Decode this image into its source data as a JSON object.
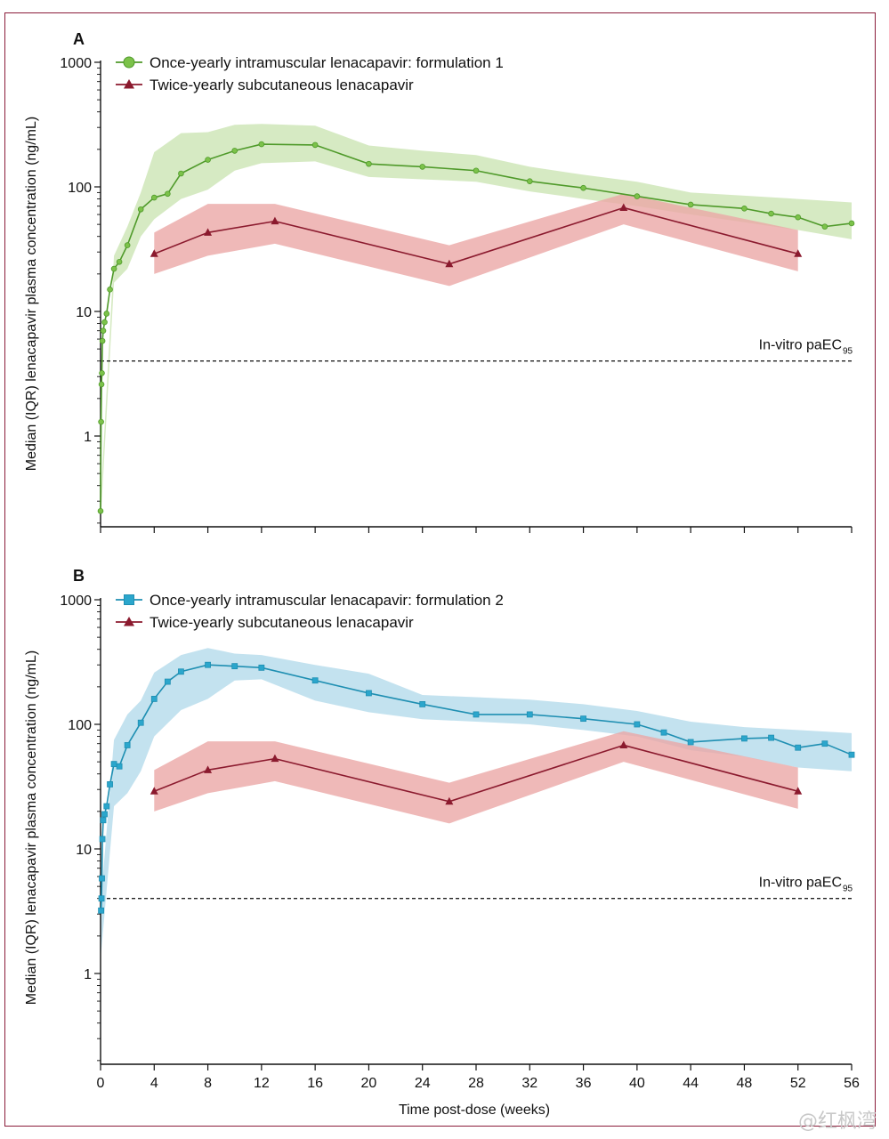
{
  "watermark": "@红枫湾",
  "chart_data": [
    {
      "panel": "A",
      "type": "line",
      "y_scale": "log",
      "ylabel": "Median (IQR) lenacapavir plasma concentration (ng/mL)",
      "ylim": [
        0.2,
        1000
      ],
      "yticks": [
        1,
        10,
        100,
        1000
      ],
      "ytick_labels": [
        "1",
        "10",
        "100",
        "1000"
      ],
      "xlim": [
        0,
        56
      ],
      "xticks": [
        0,
        4,
        8,
        12,
        16,
        20,
        24,
        28,
        32,
        36,
        40,
        44,
        48,
        52,
        56
      ],
      "legend_position": "top-left",
      "reference_line": {
        "y": 4,
        "label_main": "In-vitro paEC",
        "label_sub": "95"
      },
      "series": [
        {
          "name": "Once-yearly intramuscular lenacapavir: formulation 1",
          "color": "#4f9a2a",
          "band_color": "#cfe6b8",
          "marker": "circle",
          "points": [
            [
              0,
              0.25
            ],
            [
              0.04,
              1.3
            ],
            [
              0.07,
              2.6
            ],
            [
              0.1,
              3.2
            ],
            [
              0.14,
              5.8
            ],
            [
              0.2,
              7.0
            ],
            [
              0.3,
              8.2
            ],
            [
              0.45,
              9.6
            ],
            [
              0.7,
              15
            ],
            [
              1.0,
              22
            ],
            [
              1.4,
              25
            ],
            [
              2,
              34
            ],
            [
              3,
              66
            ],
            [
              4,
              82
            ],
            [
              5,
              88
            ],
            [
              6,
              128
            ],
            [
              8,
              165
            ],
            [
              10,
              195
            ],
            [
              12,
              220
            ],
            [
              16,
              217
            ],
            [
              20,
              153
            ],
            [
              24,
              145
            ],
            [
              28,
              135
            ],
            [
              32,
              111
            ],
            [
              36,
              98
            ],
            [
              40,
              84
            ],
            [
              44,
              72
            ],
            [
              48,
              67
            ],
            [
              50,
              61
            ],
            [
              52,
              57
            ],
            [
              54,
              48
            ],
            [
              56,
              51
            ]
          ],
          "iqr": [
            [
              0,
              0.2,
              0.3
            ],
            [
              1,
              17,
              28
            ],
            [
              2,
              22,
              48
            ],
            [
              3,
              40,
              90
            ],
            [
              4,
              55,
              190
            ],
            [
              6,
              80,
              270
            ],
            [
              8,
              95,
              275
            ],
            [
              10,
              135,
              315
            ],
            [
              12,
              155,
              320
            ],
            [
              16,
              160,
              310
            ],
            [
              20,
              120,
              215
            ],
            [
              24,
              115,
              195
            ],
            [
              28,
              110,
              180
            ],
            [
              32,
              92,
              145
            ],
            [
              36,
              80,
              125
            ],
            [
              40,
              70,
              110
            ],
            [
              44,
              60,
              90
            ],
            [
              48,
              52,
              85
            ],
            [
              52,
              45,
              80
            ],
            [
              56,
              38,
              75
            ]
          ]
        },
        {
          "name": "Twice-yearly subcutaneous lenacapavir",
          "color": "#8b1a2e",
          "band_color": "#eba8a6",
          "marker": "triangle",
          "points": [
            [
              4,
              29
            ],
            [
              8,
              43
            ],
            [
              13,
              53
            ],
            [
              26,
              24
            ],
            [
              39,
              68
            ],
            [
              52,
              29
            ]
          ],
          "iqr": [
            [
              4,
              20,
              43
            ],
            [
              8,
              28,
              73
            ],
            [
              13,
              35,
              73
            ],
            [
              26,
              16,
              34
            ],
            [
              39,
              50,
              88
            ],
            [
              52,
              21,
              45
            ]
          ]
        }
      ]
    },
    {
      "panel": "B",
      "type": "line",
      "y_scale": "log",
      "ylabel": "Median (IQR) lenacapavir plasma concentration (ng/mL)",
      "xlabel": "Time post-dose (weeks)",
      "ylim": [
        0.2,
        1000
      ],
      "yticks": [
        1,
        10,
        100,
        1000
      ],
      "ytick_labels": [
        "1",
        "10",
        "100",
        "1000"
      ],
      "xlim": [
        0,
        56
      ],
      "xticks": [
        0,
        4,
        8,
        12,
        16,
        20,
        24,
        28,
        32,
        36,
        40,
        44,
        48,
        52,
        56
      ],
      "xtick_labels": [
        "0",
        "4",
        "8",
        "12",
        "16",
        "20",
        "24",
        "28",
        "32",
        "36",
        "40",
        "44",
        "48",
        "52",
        "56"
      ],
      "legend_position": "top-left",
      "reference_line": {
        "y": 4,
        "label_main": "In-vitro paEC",
        "label_sub": "95"
      },
      "series": [
        {
          "name": "Once-yearly intramuscular lenacapavir: formulation 2",
          "color": "#1f8fb2",
          "band_color": "#b8ddec",
          "marker": "square",
          "points": [
            [
              0.04,
              3.2
            ],
            [
              0.07,
              4.0
            ],
            [
              0.1,
              5.8
            ],
            [
              0.14,
              12
            ],
            [
              0.2,
              17
            ],
            [
              0.3,
              19
            ],
            [
              0.45,
              22
            ],
            [
              0.7,
              33
            ],
            [
              1.0,
              48
            ],
            [
              1.4,
              46
            ],
            [
              2,
              68
            ],
            [
              3,
              103
            ],
            [
              4,
              160
            ],
            [
              5,
              220
            ],
            [
              6,
              265
            ],
            [
              8,
              300
            ],
            [
              10,
              293
            ],
            [
              12,
              285
            ],
            [
              16,
              225
            ],
            [
              20,
              178
            ],
            [
              24,
              145
            ],
            [
              28,
              120
            ],
            [
              32,
              120
            ],
            [
              36,
              111
            ],
            [
              40,
              100
            ],
            [
              42,
              86
            ],
            [
              44,
              72
            ],
            [
              48,
              77
            ],
            [
              50,
              78
            ],
            [
              52,
              65
            ],
            [
              54,
              70
            ],
            [
              56,
              57
            ]
          ],
          "iqr": [
            [
              0,
              1.3,
              3.5
            ],
            [
              1,
              22,
              75
            ],
            [
              2,
              28,
              120
            ],
            [
              3,
              42,
              155
            ],
            [
              4,
              80,
              260
            ],
            [
              6,
              130,
              360
            ],
            [
              8,
              160,
              410
            ],
            [
              10,
              225,
              370
            ],
            [
              12,
              230,
              360
            ],
            [
              16,
              155,
              300
            ],
            [
              20,
              125,
              255
            ],
            [
              24,
              110,
              172
            ],
            [
              28,
              105,
              165
            ],
            [
              32,
              100,
              158
            ],
            [
              36,
              90,
              145
            ],
            [
              40,
              80,
              128
            ],
            [
              44,
              62,
              105
            ],
            [
              48,
              55,
              95
            ],
            [
              52,
              45,
              90
            ],
            [
              56,
              42,
              85
            ]
          ]
        },
        {
          "name": "Twice-yearly subcutaneous lenacapavir",
          "color": "#8b1a2e",
          "band_color": "#eba8a6",
          "marker": "triangle",
          "points": [
            [
              4,
              29
            ],
            [
              8,
              43
            ],
            [
              13,
              53
            ],
            [
              26,
              24
            ],
            [
              39,
              68
            ],
            [
              52,
              29
            ]
          ],
          "iqr": [
            [
              4,
              20,
              43
            ],
            [
              8,
              28,
              73
            ],
            [
              13,
              35,
              73
            ],
            [
              26,
              16,
              34
            ],
            [
              39,
              50,
              88
            ],
            [
              52,
              21,
              45
            ]
          ]
        }
      ]
    }
  ]
}
